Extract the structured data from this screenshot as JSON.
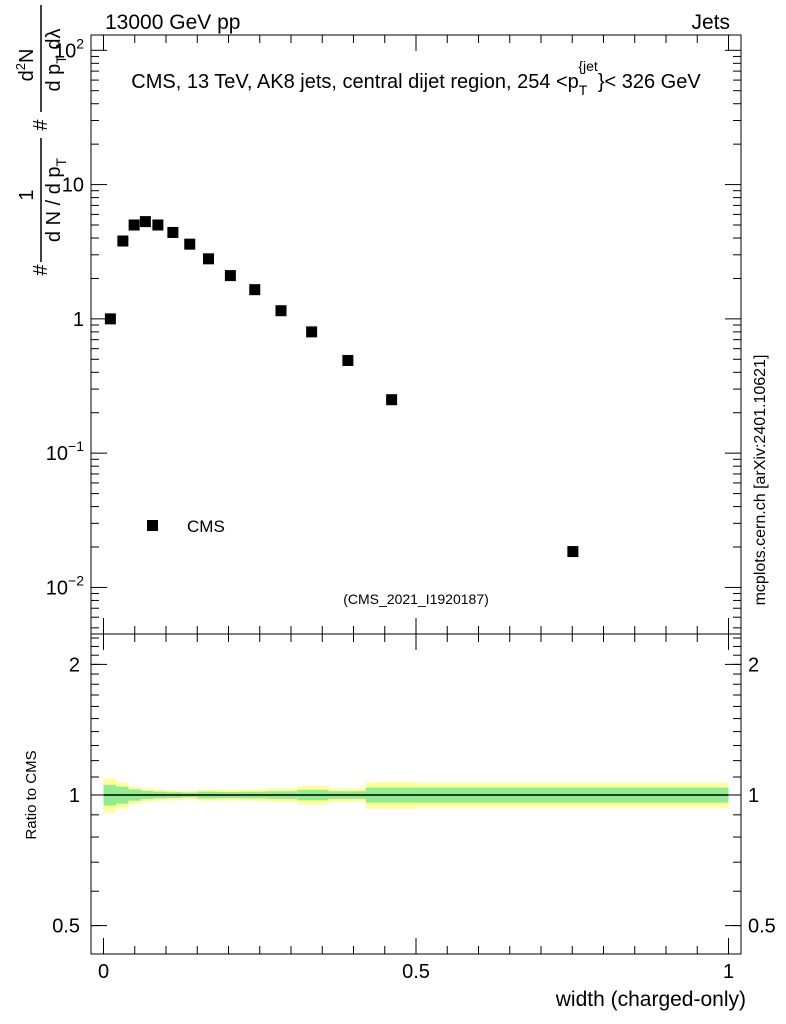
{
  "header": {
    "energy_label": "13000 GeV pp",
    "category_label": "Jets"
  },
  "side_label": "mcplots.cern.ch [arXiv:2401.10621]",
  "colors": {
    "marker": "#000000",
    "band_inner": "#90ee90",
    "band_outer": "#ffff99",
    "analysis_label": "#a0a0a0"
  },
  "chart_data": [
    {
      "type": "scatter",
      "title": "CMS, 13 TeV, AK8 jets, central dijet region, 254 <p_T^{jet}< 326 GeV",
      "title_parts": {
        "before": "CMS, 13 TeV, AK8 jets, central dijet region, 254 <p",
        "sub": "T",
        "sup": "{jet",
        "after": "}< 326 GeV"
      },
      "ylabel_parts": {
        "prefix": "#",
        "frac1_num": "1",
        "frac1_den": "d N / d p",
        "frac1_den_sub": "T",
        "mid": "#",
        "frac2_num": "d",
        "frac2_num_sup": "2",
        "frac2_num_rest": "N",
        "frac2_den": "d p",
        "frac2_den_sub": "T",
        "frac2_den_rest": " dλ"
      },
      "yscale": "log",
      "xlim": [
        -0.02,
        1.02
      ],
      "ylim": [
        0.0045,
        130
      ],
      "x_ticks": [
        0,
        0.5,
        1
      ],
      "y_ticks": [
        {
          "value": 100,
          "base": "10",
          "exp": "2"
        },
        {
          "value": 10,
          "base": "10",
          "exp": ""
        },
        {
          "value": 1,
          "base": "1",
          "exp": ""
        },
        {
          "value": 0.1,
          "base": "10",
          "exp": "−1"
        },
        {
          "value": 0.01,
          "base": "10",
          "exp": "−2"
        }
      ],
      "legend": {
        "position": "bottom-left",
        "entries": [
          "CMS"
        ]
      },
      "analysis_label": "(CMS_2021_I1920187)",
      "series": [
        {
          "name": "CMS",
          "x": [
            0.011,
            0.031,
            0.049,
            0.067,
            0.087,
            0.111,
            0.138,
            0.168,
            0.203,
            0.242,
            0.284,
            0.333,
            0.391,
            0.461,
            0.751
          ],
          "y": [
            1.0,
            3.8,
            5.0,
            5.3,
            5.0,
            4.4,
            3.6,
            2.8,
            2.1,
            1.65,
            1.15,
            0.8,
            0.49,
            0.25,
            0.0185
          ]
        }
      ]
    },
    {
      "type": "area",
      "ylabel": "Ratio to CMS",
      "xlabel": "width (charged-only)",
      "yscale": "log",
      "xlim": [
        -0.02,
        1.02
      ],
      "ylim": [
        0.43,
        2.35
      ],
      "y_ticks": [
        {
          "value": 2,
          "label": "2"
        },
        {
          "value": 1,
          "label": "1"
        },
        {
          "value": 0.5,
          "label": "0.5"
        }
      ],
      "x_ticks": [
        {
          "value": 0,
          "label": "0"
        },
        {
          "value": 0.5,
          "label": "0.5"
        },
        {
          "value": 1,
          "label": "1"
        }
      ],
      "reference_line": 1,
      "bin_edges": [
        0.0,
        0.02,
        0.04,
        0.06,
        0.08,
        0.1,
        0.125,
        0.15,
        0.18,
        0.22,
        0.26,
        0.31,
        0.36,
        0.42,
        0.5,
        1.0
      ],
      "band_inner": [
        0.055,
        0.045,
        0.03,
        0.022,
        0.018,
        0.015,
        0.013,
        0.018,
        0.016,
        0.018,
        0.02,
        0.028,
        0.02,
        0.04,
        0.04
      ],
      "band_outer": [
        0.09,
        0.07,
        0.045,
        0.035,
        0.03,
        0.025,
        0.022,
        0.03,
        0.028,
        0.03,
        0.035,
        0.05,
        0.035,
        0.07,
        0.065
      ]
    }
  ]
}
